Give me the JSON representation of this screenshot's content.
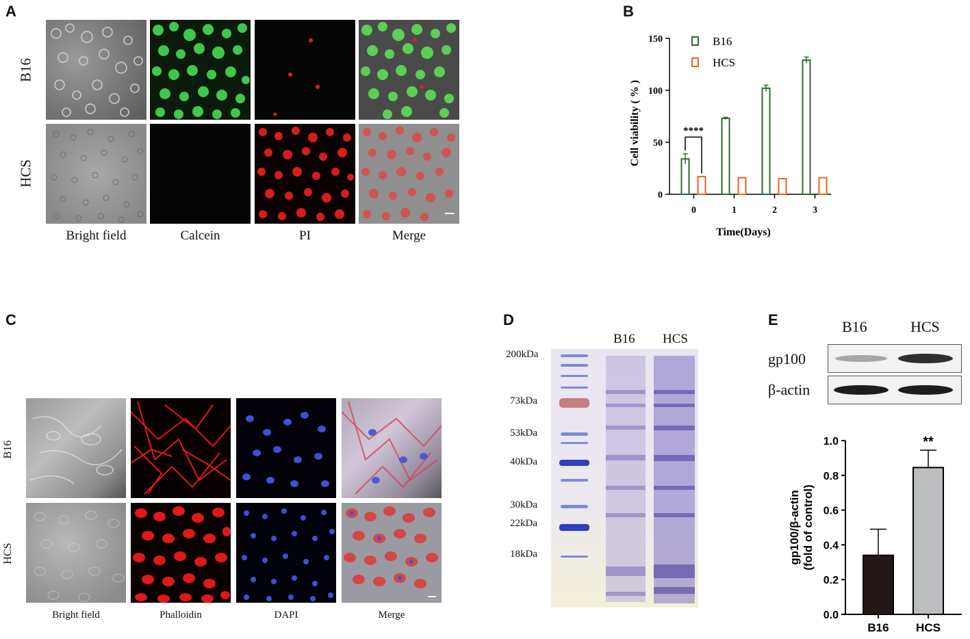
{
  "panels": {
    "A": {
      "label": "A",
      "rows": [
        "B16",
        "HCS"
      ],
      "columns": [
        "Bright field",
        "Calcein",
        "PI",
        "Merge"
      ]
    },
    "B": {
      "label": "B",
      "significance": "****"
    },
    "C": {
      "label": "C",
      "rows": [
        "B16",
        "HCS"
      ],
      "columns": [
        "Bright field",
        "Phalloidin",
        "DAPI",
        "Merge"
      ]
    },
    "D": {
      "label": "D",
      "lanes": [
        "B16",
        "HCS"
      ],
      "markers": [
        "200kDa",
        "73kDa",
        "53kDa",
        "40kDa",
        "30kDa",
        "22kDa",
        "18kDa"
      ]
    },
    "E": {
      "label": "E",
      "lanes": [
        "B16",
        "HCS"
      ],
      "blots": [
        "gp100",
        "β-actin"
      ],
      "significance": "**"
    }
  },
  "chart_data": [
    {
      "panel": "B",
      "type": "bar",
      "categories": [
        "0",
        "1",
        "2",
        "3"
      ],
      "series": [
        {
          "name": "B16",
          "values": [
            34,
            73,
            102,
            129
          ],
          "errors": [
            5,
            1,
            3,
            3
          ],
          "color": "#2e6b2e"
        },
        {
          "name": "HCS",
          "values": [
            17,
            16,
            15,
            16
          ],
          "errors": [
            0.5,
            0.5,
            0.5,
            0.5
          ],
          "color": "#e8622a"
        }
      ],
      "xlabel": "Time(Days)",
      "ylabel": "Cell viability ( % )",
      "ylim": [
        0,
        150
      ],
      "yticks": [
        "0",
        "50",
        "100",
        "150"
      ],
      "legend": "top-left"
    },
    {
      "panel": "E",
      "type": "bar",
      "categories": [
        "B16",
        "HCS"
      ],
      "values": [
        0.34,
        0.845
      ],
      "errors": [
        0.15,
        0.1
      ],
      "colors": [
        "#231815",
        "#bdbec0"
      ],
      "ylabel": "gp100/β-actin (fold of control)",
      "ylabel_lines": [
        "gp100/β-actin",
        "(fold of control)"
      ],
      "ylim": [
        0,
        1.0
      ],
      "yticks": [
        "0.0",
        "0.2",
        "0.4",
        "0.6",
        "0.8",
        "1.0"
      ]
    }
  ]
}
